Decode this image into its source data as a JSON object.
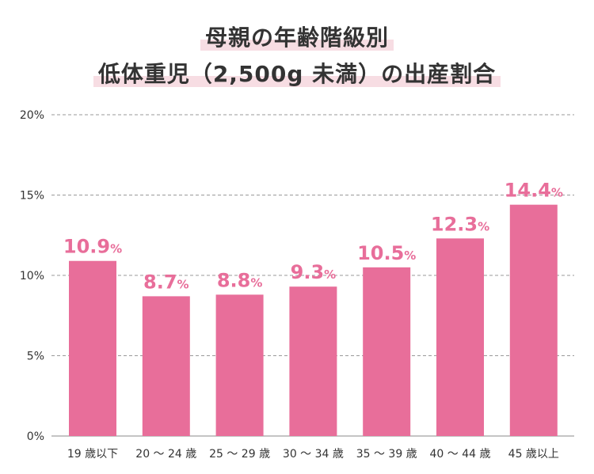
{
  "title": {
    "line1": "母親の年齢階級別",
    "line2": "低体重児（2,500g 未満）の出産割合"
  },
  "colors": {
    "bar": "#e86e9a",
    "value_label": "#e86e9a",
    "grid": "#999999",
    "axis_text": "#333333",
    "title_highlight": "#f7dde3"
  },
  "chart_data": {
    "type": "bar",
    "title": "母親の年齢階級別 低体重児（2,500g 未満）の出産割合",
    "xlabel": "",
    "ylabel": "",
    "categories": [
      "19 歳以下",
      "20 ～ 24 歳",
      "25 ～ 29 歳",
      "30 ～ 34 歳",
      "35 ～ 39 歳",
      "40 ～ 44 歳",
      "45 歳以上"
    ],
    "values": [
      10.9,
      8.7,
      8.8,
      9.3,
      10.5,
      12.3,
      14.4
    ],
    "value_labels": [
      "10.9",
      "8.7",
      "8.8",
      "9.3",
      "10.5",
      "12.3",
      "14.4"
    ],
    "value_unit": "%",
    "ylim": [
      0,
      20
    ],
    "yticks": [
      0,
      5,
      10,
      15,
      20
    ],
    "ytick_labels": [
      "0%",
      "5%",
      "10%",
      "15%",
      "20%"
    ],
    "grid": true,
    "grid_style": "dashed"
  }
}
